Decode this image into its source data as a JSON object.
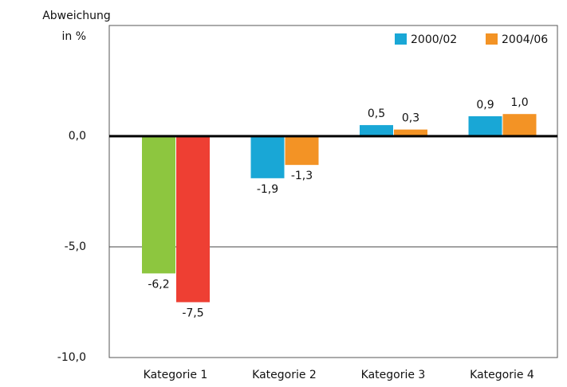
{
  "chart_data": {
    "type": "bar",
    "ylabel_lines": [
      "Abweichung",
      "in %"
    ],
    "categories": [
      "Kategorie 1",
      "Kategorie 2",
      "Kategorie 3",
      "Kategorie 4"
    ],
    "series": [
      {
        "name": "2000/02",
        "color": "#19a7d6",
        "colors": [
          "#8dc63f",
          "#19a7d6",
          "#19a7d6",
          "#19a7d6"
        ],
        "values": [
          -6.2,
          -1.9,
          0.5,
          0.9
        ],
        "value_labels": [
          "-6,2",
          "-1,9",
          "0,5",
          "0,9"
        ]
      },
      {
        "name": "2004/06",
        "color": "#f39325",
        "colors": [
          "#ee3f33",
          "#f39325",
          "#f39325",
          "#f39325"
        ],
        "values": [
          -7.5,
          -1.3,
          0.3,
          1.0
        ],
        "value_labels": [
          "-7,5",
          "-1,3",
          "0,3",
          "1,0"
        ]
      }
    ],
    "ylim": [
      -10,
      5
    ],
    "yticks": [
      {
        "value": 0,
        "label": "0,0"
      },
      {
        "value": -5,
        "label": "-5,0"
      },
      {
        "value": -10,
        "label": "-10,0"
      }
    ],
    "grid": true,
    "legend": "top-right"
  }
}
